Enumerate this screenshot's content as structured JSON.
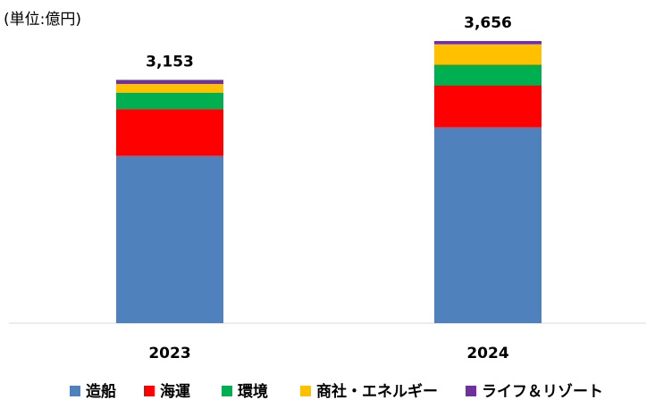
{
  "chart_data": {
    "type": "stacked_bar",
    "unit": "(単位:億円)",
    "categories": [
      "2023",
      "2024"
    ],
    "series": [
      {
        "name": "造船",
        "color": "#4f81bd",
        "values": [
          2170,
          2540
        ]
      },
      {
        "name": "海運",
        "color": "#ff0000",
        "values": [
          605,
          545
        ]
      },
      {
        "name": "環境",
        "color": "#00b050",
        "values": [
          210,
          265
        ]
      },
      {
        "name": "商社・エネルギー",
        "color": "#ffc000",
        "values": [
          115,
          265
        ]
      },
      {
        "name": "ライフ＆リゾート",
        "color": "#7030a0",
        "values": [
          53,
          41
        ]
      }
    ],
    "totals": {
      "values": [
        3153,
        3656
      ],
      "value_labels": [
        "3,153",
        "3,656"
      ]
    },
    "legend": "bottom"
  }
}
